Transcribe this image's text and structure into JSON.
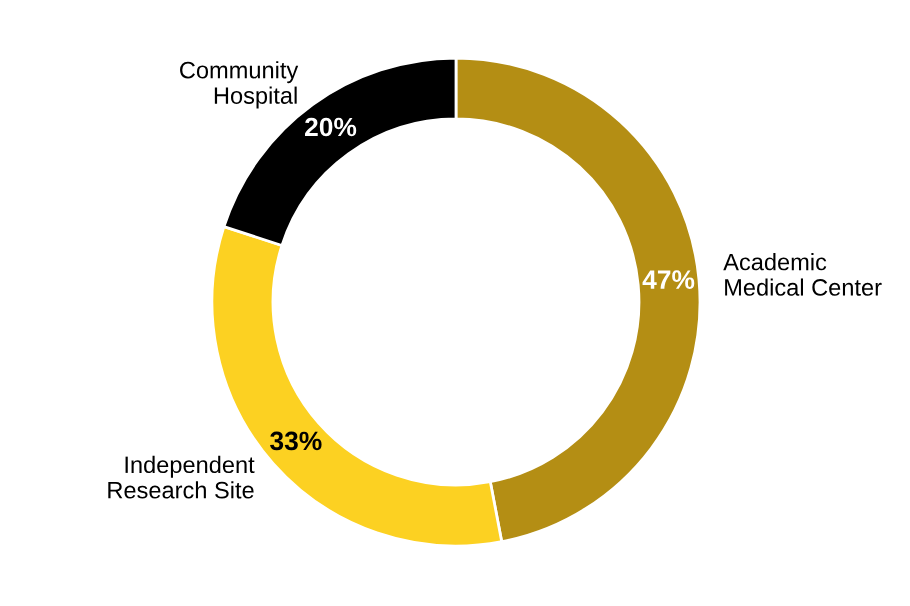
{
  "chart_data": {
    "type": "donut",
    "categories": [
      "Academic\nMedical Center",
      "Independent\nResearch Site",
      "Community\nHospital"
    ],
    "values": [
      47,
      33,
      20
    ],
    "colors": [
      "#b48e14",
      "#fcd122",
      "#000000"
    ],
    "value_labels": [
      "47%",
      "33%",
      "20%"
    ],
    "legend": false
  }
}
